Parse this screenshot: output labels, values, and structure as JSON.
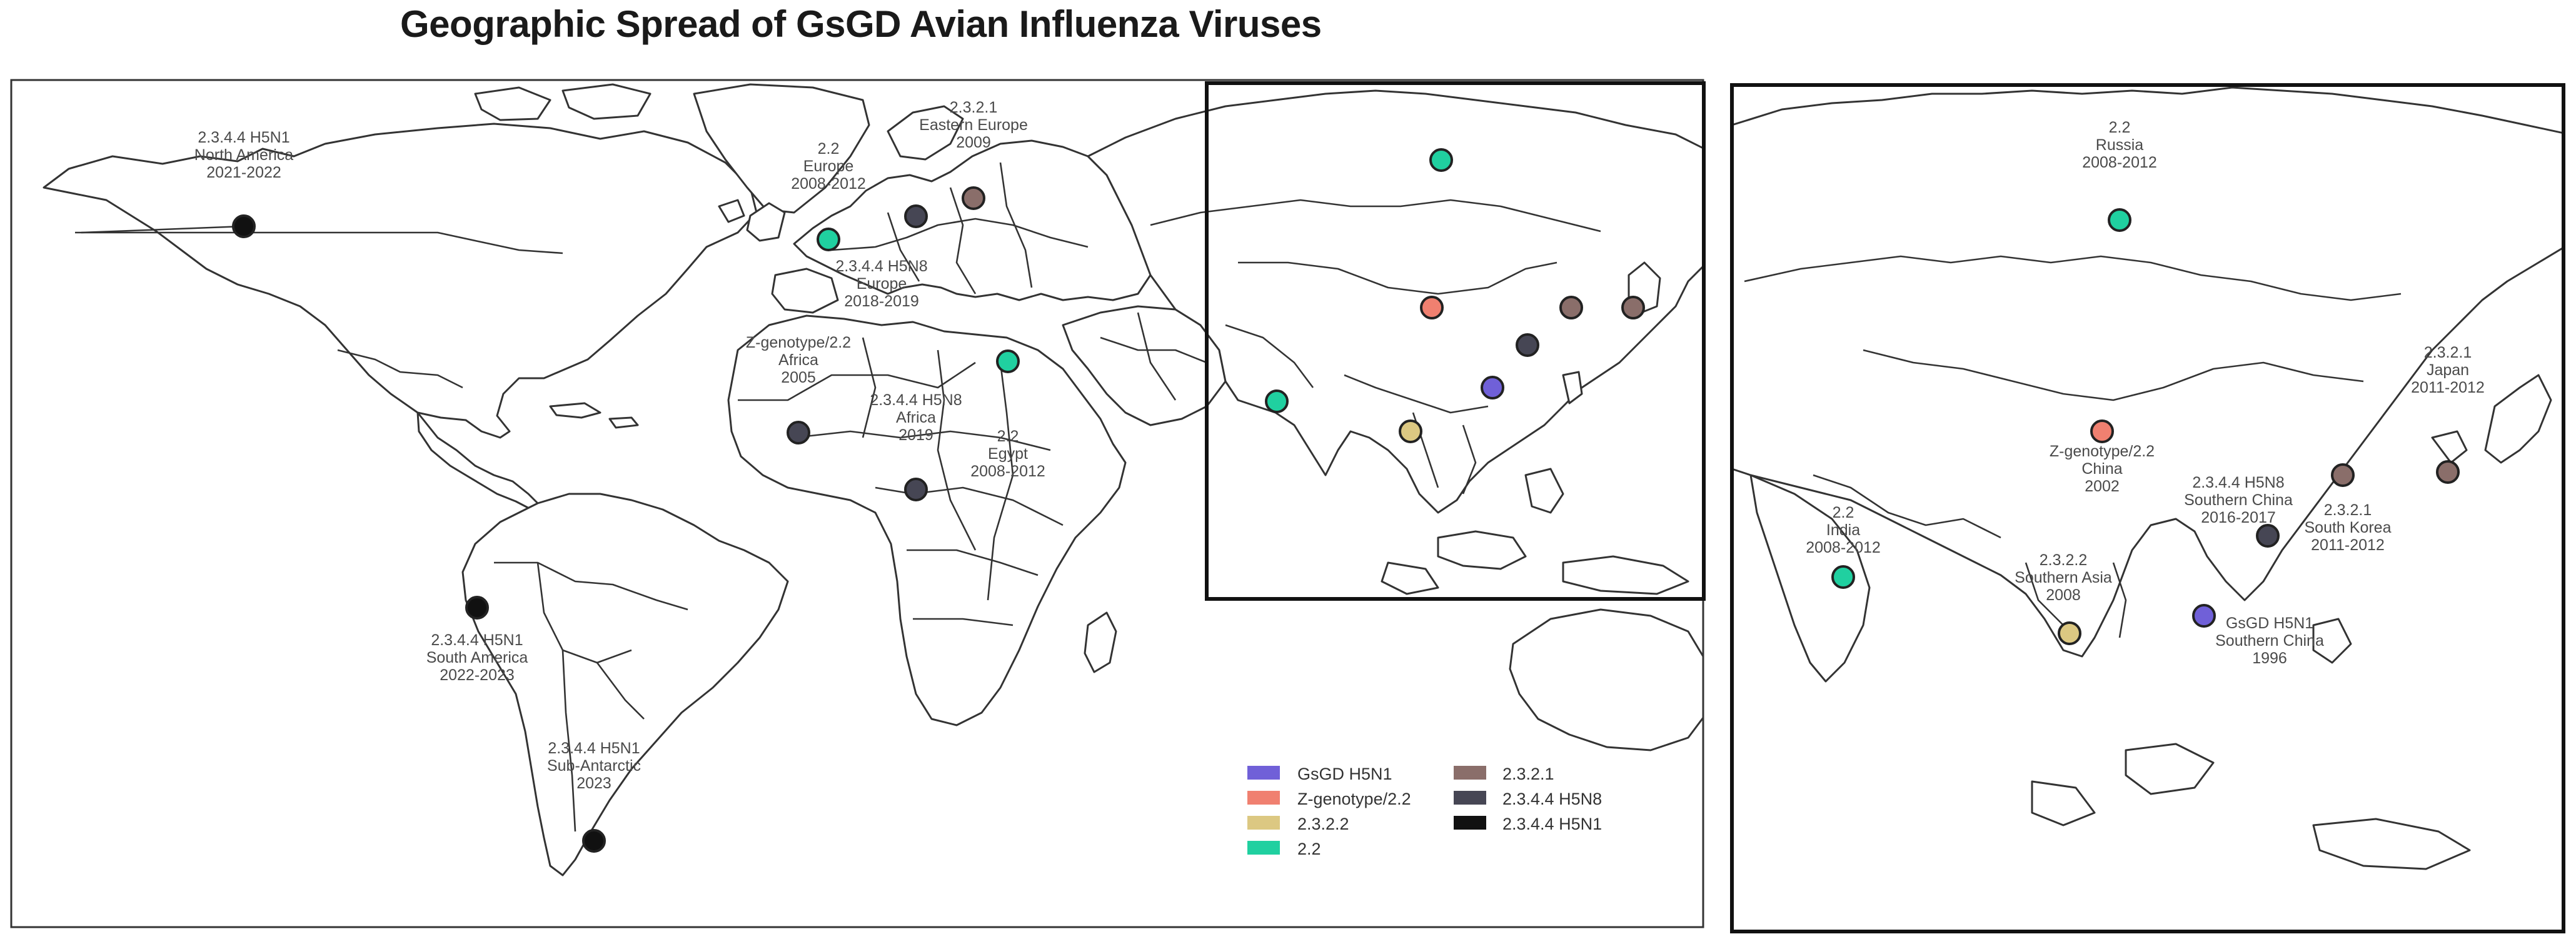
{
  "title": "Geographic Spread of GsGD Avian Influenza Viruses",
  "colors": {
    "gsgd_h5n1": "#7060d8",
    "zgenotype": "#f08070",
    "c2322": "#dcc882",
    "c22": "#20d0a0",
    "c2321": "#8a6e6a",
    "c2344_h5n8": "#464654",
    "c2344_h5n1": "#111111"
  },
  "legend": [
    {
      "key": "gsgd_h5n1",
      "label": "GsGD H5N1"
    },
    {
      "key": "zgenotype",
      "label": "Z-genotype/2.2"
    },
    {
      "key": "c2322",
      "label": "2.3.2.2"
    },
    {
      "key": "c22",
      "label": "2.2"
    },
    {
      "key": "c2321",
      "label": "2.3.2.1"
    },
    {
      "key": "c2344_h5n8",
      "label": "2.3.4.4 H5N8"
    },
    {
      "key": "c2344_h5n1",
      "label": "2.3.4.4 H5N1"
    }
  ],
  "labels": {
    "na": [
      "2.3.4.4 H5N1",
      "North America",
      "2021-2022"
    ],
    "sa": [
      "2.3.4.4 H5N1",
      "South America",
      "2022-2023"
    ],
    "subant": [
      "2.3.4.4 H5N1",
      "Sub-Antarctic",
      "2023"
    ],
    "eu22": [
      "2.2",
      "Europe",
      "2008-2012"
    ],
    "ee": [
      "2.3.2.1",
      "Eastern Europe",
      "2009"
    ],
    "eu_h5n8": [
      "2.3.4.4 H5N8",
      "Europe",
      "2018-2019"
    ],
    "zafrica": [
      "Z-genotype/2.2",
      "Africa",
      "2005"
    ],
    "af_h5n8": [
      "2.3.4.4 H5N8",
      "Africa",
      "2019"
    ],
    "egypt": [
      "2.2",
      "Egypt",
      "2008-2012"
    ],
    "russia": [
      "2.2",
      "Russia",
      "2008-2012"
    ],
    "japan": [
      "2.3.2.1",
      "Japan",
      "2011-2012"
    ],
    "zchina": [
      "Z-genotype/2.2",
      "China",
      "2002"
    ],
    "sc_h5n8": [
      "2.3.4.4 H5N8",
      "Southern China",
      "2016-2017"
    ],
    "skorea": [
      "2.3.2.1",
      "South Korea",
      "2011-2012"
    ],
    "india": [
      "2.2",
      "India",
      "2008-2012"
    ],
    "sasia": [
      "2.3.2.2",
      "Southern Asia",
      "2008"
    ],
    "gsgd": [
      "GsGD H5N1",
      "Southern China",
      "1996"
    ]
  }
}
